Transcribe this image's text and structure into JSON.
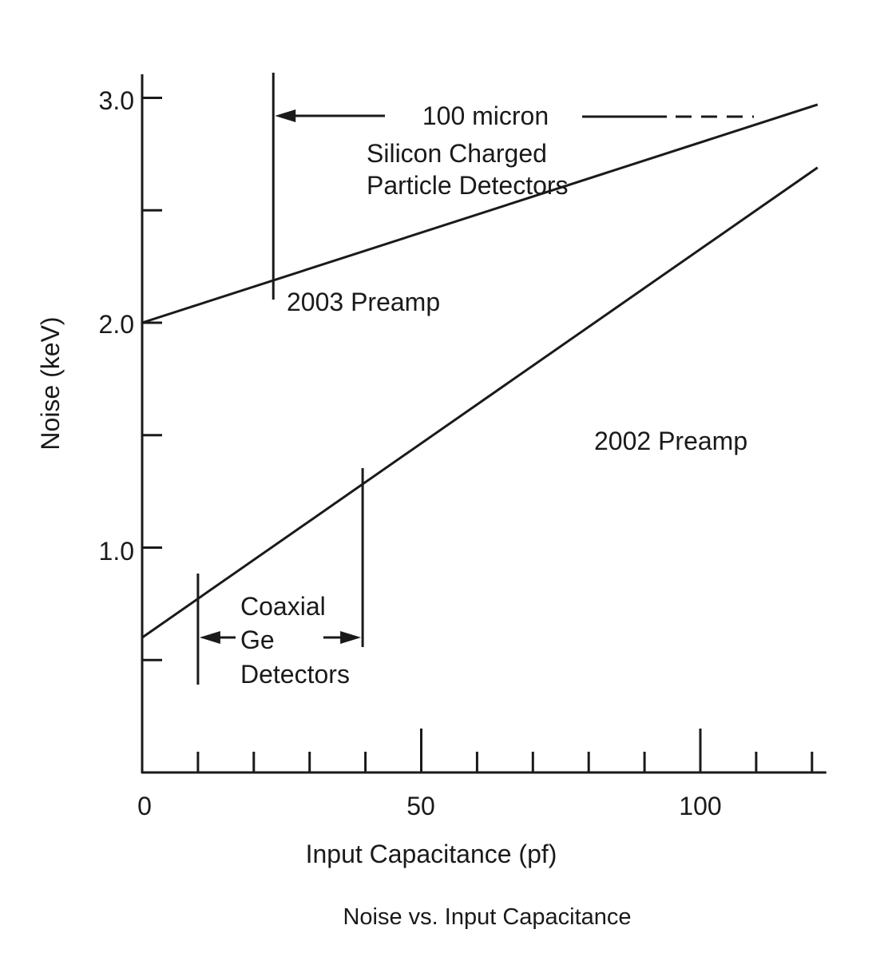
{
  "chart_data": {
    "type": "line",
    "title": "Noise vs. Input Capacitance",
    "xlabel": "Input Capacitance (pf)",
    "ylabel": "Noise (keV)",
    "xlim": [
      0,
      122
    ],
    "ylim": [
      0,
      3.1
    ],
    "grid": false,
    "x_ticks_major": [
      0,
      50,
      100
    ],
    "x_tick_labels": [
      "0",
      "50",
      "100"
    ],
    "x_ticks_minor": [
      10,
      20,
      30,
      40,
      60,
      70,
      80,
      90,
      110,
      120
    ],
    "y_ticks_major": [
      1.0,
      2.0,
      3.0
    ],
    "y_tick_labels": [
      "1.0",
      "2.0",
      "3.0"
    ],
    "y_ticks_minor": [
      0.5,
      1.5,
      2.5
    ],
    "series": [
      {
        "name": "2003 Preamp",
        "x": [
          0,
          121
        ],
        "y": [
          2.0,
          2.97
        ]
      },
      {
        "name": "2002 Preamp",
        "x": [
          0,
          121
        ],
        "y": [
          0.6,
          2.69
        ]
      }
    ],
    "annotations": {
      "silicon": {
        "range_label": "100 micron",
        "line1": "Silicon Charged",
        "line2": "Particle Detectors",
        "x_marker": 23.5,
        "arrow_y": 2.92
      },
      "coaxial": {
        "line1": "Coaxial",
        "line2": "Ge",
        "line3": "Detectors",
        "x_range": [
          10,
          39.5
        ]
      },
      "preamp2003_label": "2003 Preamp",
      "preamp2002_label": "2002 Preamp"
    }
  }
}
